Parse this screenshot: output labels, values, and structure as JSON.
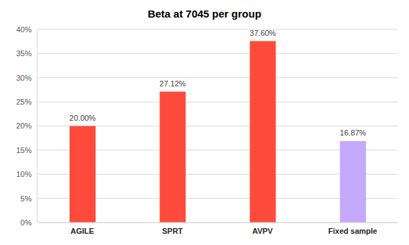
{
  "chart_data": {
    "type": "bar",
    "title": "Beta at 7045 per group",
    "categories": [
      "AGILE",
      "SPRT",
      "AVPV",
      "Fixed sample"
    ],
    "values": [
      20.0,
      27.12,
      37.6,
      16.87
    ],
    "value_labels": [
      "20.00%",
      "27.12%",
      "37.60%",
      "16.87%"
    ],
    "colors": [
      "#ff4b3b",
      "#ff4b3b",
      "#ff4b3b",
      "#c4a9ff"
    ],
    "ylim": [
      0,
      40
    ],
    "yticks": [
      {
        "value": 0,
        "label": "0%"
      },
      {
        "value": 5,
        "label": "5%"
      },
      {
        "value": 10,
        "label": "10%"
      },
      {
        "value": 15,
        "label": "15%"
      },
      {
        "value": 20,
        "label": "20%"
      },
      {
        "value": 25,
        "label": "25%"
      },
      {
        "value": 30,
        "label": "30%"
      },
      {
        "value": 35,
        "label": "35%"
      },
      {
        "value": 40,
        "label": "40%"
      }
    ],
    "grid": true,
    "data_labels": true
  }
}
